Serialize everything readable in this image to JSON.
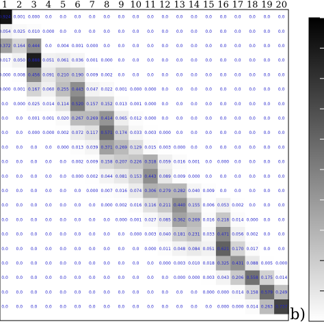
{
  "chart_data": {
    "type": "heatmap",
    "x_categories": [
      "1",
      "2",
      "3",
      "4",
      "5",
      "6",
      "7",
      "8",
      "9",
      "10",
      "11",
      "12",
      "13",
      "14",
      "15",
      "16",
      "17",
      "18",
      "19",
      "20"
    ],
    "rows": [
      [
        "0.924",
        "0.001",
        "0.000",
        "0.0",
        "0.0",
        "0.0",
        "0.0",
        "0.0",
        "0.0",
        "0.0",
        "0.0",
        "0.0",
        "0.0",
        "0.0",
        "0.0",
        "0.0",
        "0.0",
        "0.0",
        "0.0",
        "0.0"
      ],
      [
        "0.054",
        "0.025",
        "0.010",
        "0.000",
        "0.0",
        "0.0",
        "0.0",
        "0.0",
        "0.0",
        "0.0",
        "0.0",
        "0.0",
        "0.0",
        "0.0",
        "0.0",
        "0.0",
        "0.0",
        "0.0",
        "0.0",
        "0.0"
      ],
      [
        "0.372",
        "0.164",
        "0.444",
        "0.0",
        "0.004",
        "0.001",
        "0.000",
        "0.0",
        "0.0",
        "0.0",
        "0.0",
        "0.0",
        "0.0",
        "0.0",
        "0.0",
        "0.0",
        "0.0",
        "0.0",
        "0.0",
        "0.0"
      ],
      [
        "0.017",
        "0.050",
        "0.888",
        "0.051",
        "0.061",
        "0.036",
        "0.001",
        "0.000",
        "0.0",
        "0.0",
        "0.0",
        "0.0",
        "0.0",
        "0.0",
        "0.0",
        "0.0",
        "0.0",
        "0.0",
        "0.0",
        "0.0"
      ],
      [
        "0.000",
        "0.008",
        "0.456",
        "0.091",
        "0.210",
        "0.190",
        "0.009",
        "0.002",
        "0.0",
        "0.0",
        "0.0",
        "0.0",
        "0.0",
        "0.0",
        "0.0",
        "0.0",
        "0.0",
        "0.0",
        "0.0",
        "0.0"
      ],
      [
        "0.000",
        "0.001",
        "0.167",
        "0.060",
        "0.255",
        "0.443",
        "0.047",
        "0.022",
        "0.001",
        "0.000",
        "0.000",
        "0.0",
        "0.0",
        "0.0",
        "0.0",
        "0.0",
        "0.0",
        "0.0",
        "0.0",
        "0.0"
      ],
      [
        "0.0",
        "0.000",
        "0.025",
        "0.014",
        "0.114",
        "0.520",
        "0.157",
        "0.152",
        "0.013",
        "0.001",
        "0.000",
        "0.0",
        "0.0",
        "0.0",
        "0.0",
        "0.0",
        "0.0",
        "0.0",
        "0.0",
        "0.0"
      ],
      [
        "0.0",
        "0.0",
        "0.001",
        "0.001",
        "0.020",
        "0.267",
        "0.269",
        "0.414",
        "0.065",
        "0.012",
        "0.000",
        "0.0",
        "0.0",
        "0.0",
        "0.0",
        "0.0",
        "0.0",
        "0.0",
        "0.0",
        "0.0"
      ],
      [
        "0.0",
        "0.0",
        "0.000",
        "0.000",
        "0.002",
        "0.072",
        "0.117",
        "0.571",
        "0.174",
        "0.033",
        "0.003",
        "0.000",
        "0.0",
        "0.0",
        "0.0",
        "0.0",
        "0.0",
        "0.0",
        "0.0",
        "0.0"
      ],
      [
        "0.0",
        "0.0",
        "0.0",
        "0.0",
        "0.000",
        "0.013",
        "0.039",
        "0.371",
        "0.269",
        "0.129",
        "0.015",
        "0.003",
        "0.000",
        "0.0",
        "0.0",
        "0.0",
        "0.0",
        "0.0",
        "0.0",
        "0.0"
      ],
      [
        "0.0",
        "0.0",
        "0.0",
        "0.0",
        "0.0",
        "0.002",
        "0.009",
        "0.158",
        "0.207",
        "0.226",
        "0.318",
        "0.059",
        "0.016",
        "0.001",
        "0.0",
        "0.000",
        "0.0",
        "0.0",
        "0.0",
        "0.0"
      ],
      [
        "0.0",
        "0.0",
        "0.0",
        "0.0",
        "0.0",
        "0.000",
        "0.002",
        "0.044",
        "0.081",
        "0.153",
        "0.443",
        "0.089",
        "0.009",
        "0.000",
        "0.0",
        "0.0",
        "0.0",
        "0.0",
        "0.0",
        "0.0"
      ],
      [
        "0.0",
        "0.0",
        "0.0",
        "0.0",
        "0.0",
        "0.0",
        "0.000",
        "0.007",
        "0.016",
        "0.074",
        "0.306",
        "0.279",
        "0.282",
        "0.040",
        "0.009",
        "0.0",
        "0.0",
        "0.0",
        "0.0",
        "0.0"
      ],
      [
        "0.0",
        "0.0",
        "0.0",
        "0.0",
        "0.0",
        "0.0",
        "0.0",
        "0.000",
        "0.002",
        "0.016",
        "0.116",
        "0.211",
        "0.440",
        "0.155",
        "0.006",
        "0.053",
        "0.002",
        "0.0",
        "0.0",
        "0.0"
      ],
      [
        "0.0",
        "0.0",
        "0.0",
        "0.0",
        "0.0",
        "0.0",
        "0.0",
        "0.0",
        "0.000",
        "0.001",
        "0.027",
        "0.085",
        "0.362",
        "0.269",
        "0.016",
        "0.218",
        "0.014",
        "0.000",
        "0.0",
        "0.0"
      ],
      [
        "0.0",
        "0.0",
        "0.0",
        "0.0",
        "0.0",
        "0.0",
        "0.0",
        "0.0",
        "0.0",
        "0.000",
        "0.003",
        "0.040",
        "0.181",
        "0.231",
        "0.033",
        "0.471",
        "0.056",
        "0.002",
        "0.0",
        "0.0"
      ],
      [
        "0.0",
        "0.0",
        "0.0",
        "0.0",
        "0.0",
        "0.0",
        "0.0",
        "0.0",
        "0.0",
        "0.0",
        "0.000",
        "0.011",
        "0.048",
        "0.084",
        "0.051",
        "0.621",
        "0.170",
        "0.017",
        "0.0",
        "0.0"
      ],
      [
        "0.0",
        "0.0",
        "0.0",
        "0.0",
        "0.0",
        "0.0",
        "0.0",
        "0.0",
        "0.0",
        "0.0",
        "0.0",
        "0.000",
        "0.003",
        "0.010",
        "0.018",
        "0.325",
        "0.431",
        "0.088",
        "0.005",
        "0.000"
      ],
      [
        "0.0",
        "0.0",
        "0.0",
        "0.0",
        "0.0",
        "0.0",
        "0.0",
        "0.0",
        "0.0",
        "0.0",
        "0.0",
        "0.0",
        "0.000",
        "0.000",
        "0.003",
        "0.043",
        "0.206",
        "0.558",
        "0.175",
        "0.014"
      ],
      [
        "0.0",
        "0.0",
        "0.0",
        "0.0",
        "0.0",
        "0.0",
        "0.0",
        "0.0",
        "0.0",
        "0.0",
        "0.0",
        "0.0",
        "0.0",
        "0.0",
        "0.000",
        "0.000",
        "0.014",
        "0.158",
        "0.579",
        "0.249"
      ],
      [
        "0.0",
        "0.0",
        "0.0",
        "0.0",
        "0.0",
        "0.0",
        "0.0",
        "0.0",
        "0.0",
        "0.0",
        "0.0",
        "0.0",
        "0.0",
        "0.0",
        "0.0",
        "0.000",
        "0.000",
        "0.014",
        "0.263",
        "0.737"
      ]
    ],
    "colormap": [
      "#ffffff",
      "#000000"
    ],
    "value_range": [
      0,
      1
    ],
    "colorbar": "right",
    "grid": false
  },
  "panel_label": "b)"
}
